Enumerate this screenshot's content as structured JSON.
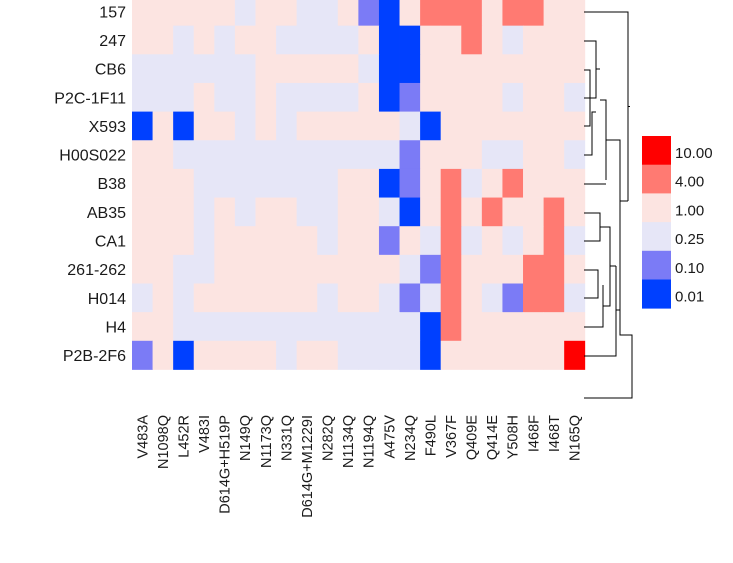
{
  "chart_data": {
    "type": "heatmap",
    "title": "",
    "xlabel": "",
    "ylabel": "",
    "rows": [
      "157",
      "247",
      "CB6",
      "P2C-1F11",
      "X593",
      "H00S022",
      "B38",
      "AB35",
      "CA1",
      "261-262",
      "H014",
      "H4",
      "P2B-2F6"
    ],
    "columns": [
      "V483A",
      "N1098Q",
      "L452R",
      "V483I",
      "D614G+H519P",
      "N149Q",
      "N1173Q",
      "N331Q",
      "D614G+M1229I",
      "N282Q",
      "N1134Q",
      "N1194Q",
      "A475V",
      "N234Q",
      "F490L",
      "V367F",
      "Q409E",
      "Q414E",
      "Y508H",
      "I468F",
      "I468T",
      "N165Q"
    ],
    "values": [
      [
        1,
        1,
        1,
        1,
        1,
        0.25,
        1,
        1,
        0.25,
        0.25,
        1,
        0.1,
        0.01,
        1,
        4,
        4,
        4,
        1,
        4,
        4,
        1,
        1
      ],
      [
        1,
        1,
        0.25,
        1,
        0.25,
        1,
        1,
        0.25,
        0.25,
        0.25,
        0.25,
        1,
        0.01,
        0.01,
        1,
        1,
        4,
        1,
        0.25,
        1,
        1,
        1
      ],
      [
        0.25,
        0.25,
        0.25,
        0.25,
        0.25,
        0.25,
        1,
        1,
        1,
        1,
        1,
        0.25,
        0.01,
        0.01,
        1,
        1,
        1,
        1,
        1,
        1,
        1,
        1
      ],
      [
        0.25,
        0.25,
        0.25,
        1,
        0.25,
        0.25,
        1,
        0.25,
        0.25,
        0.25,
        0.25,
        1,
        0.01,
        0.1,
        1,
        1,
        1,
        1,
        0.25,
        1,
        1,
        0.25
      ],
      [
        0.01,
        1,
        0.01,
        1,
        1,
        0.25,
        1,
        0.25,
        1,
        1,
        1,
        1,
        1,
        0.25,
        0.01,
        1,
        1,
        1,
        1,
        1,
        1,
        1
      ],
      [
        1,
        1,
        0.25,
        0.25,
        0.25,
        0.25,
        0.25,
        0.25,
        0.25,
        0.25,
        0.25,
        0.25,
        0.25,
        0.1,
        1,
        1,
        1,
        0.25,
        0.25,
        1,
        1,
        0.25
      ],
      [
        1,
        1,
        1,
        0.25,
        0.25,
        0.25,
        0.25,
        0.25,
        0.25,
        0.25,
        1,
        1,
        0.01,
        0.1,
        1,
        4,
        0.25,
        1,
        4,
        1,
        1,
        1
      ],
      [
        1,
        1,
        1,
        0.25,
        1,
        0.25,
        1,
        1,
        0.25,
        0.25,
        1,
        1,
        0.25,
        0.01,
        1,
        4,
        1,
        4,
        1,
        1,
        4,
        1
      ],
      [
        1,
        1,
        1,
        0.25,
        1,
        1,
        1,
        1,
        1,
        0.25,
        1,
        1,
        0.1,
        1,
        0.25,
        4,
        0.25,
        1,
        0.25,
        1,
        4,
        0.25
      ],
      [
        1,
        1,
        0.25,
        0.25,
        1,
        1,
        1,
        1,
        1,
        1,
        1,
        1,
        1,
        0.25,
        0.1,
        4,
        1,
        1,
        1,
        4,
        4,
        1
      ],
      [
        0.25,
        1,
        0.25,
        1,
        1,
        1,
        1,
        1,
        1,
        0.25,
        1,
        1,
        0.25,
        0.1,
        0.25,
        4,
        1,
        0.25,
        0.1,
        4,
        4,
        0.25
      ],
      [
        1,
        1,
        0.25,
        0.25,
        0.25,
        0.25,
        0.25,
        0.25,
        0.25,
        0.25,
        0.25,
        0.25,
        0.25,
        0.25,
        0.01,
        4,
        1,
        1,
        1,
        1,
        1,
        1
      ],
      [
        0.1,
        1,
        0.01,
        1,
        1,
        1,
        1,
        0.25,
        1,
        1,
        0.25,
        0.25,
        0.25,
        0.25,
        0.01,
        1,
        1,
        1,
        1,
        1,
        1,
        10
      ]
    ],
    "legend": {
      "entries": [
        "10.00",
        "4.00",
        "1.00",
        "0.25",
        "0.10",
        "0.01"
      ],
      "colors": [
        "#ff0000",
        "#ff7a72",
        "#fce4e1",
        "#e6e6f7",
        "#7b7bf6",
        "#0040ff"
      ],
      "placement": "right"
    },
    "dendrogram": "rows, right side"
  }
}
